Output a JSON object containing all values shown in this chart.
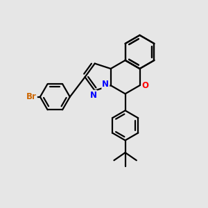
{
  "background_color": "#e6e6e6",
  "bond_color": "#000000",
  "bond_width": 1.6,
  "atom_labels": {
    "Br": {
      "color": "#cc6600",
      "fontsize": 8.5,
      "fontweight": "bold"
    },
    "N": {
      "color": "#0000ff",
      "fontsize": 8.5,
      "fontweight": "bold"
    },
    "O": {
      "color": "#ff0000",
      "fontsize": 8.5,
      "fontweight": "bold"
    }
  },
  "figsize": [
    3.0,
    3.0
  ],
  "dpi": 100
}
